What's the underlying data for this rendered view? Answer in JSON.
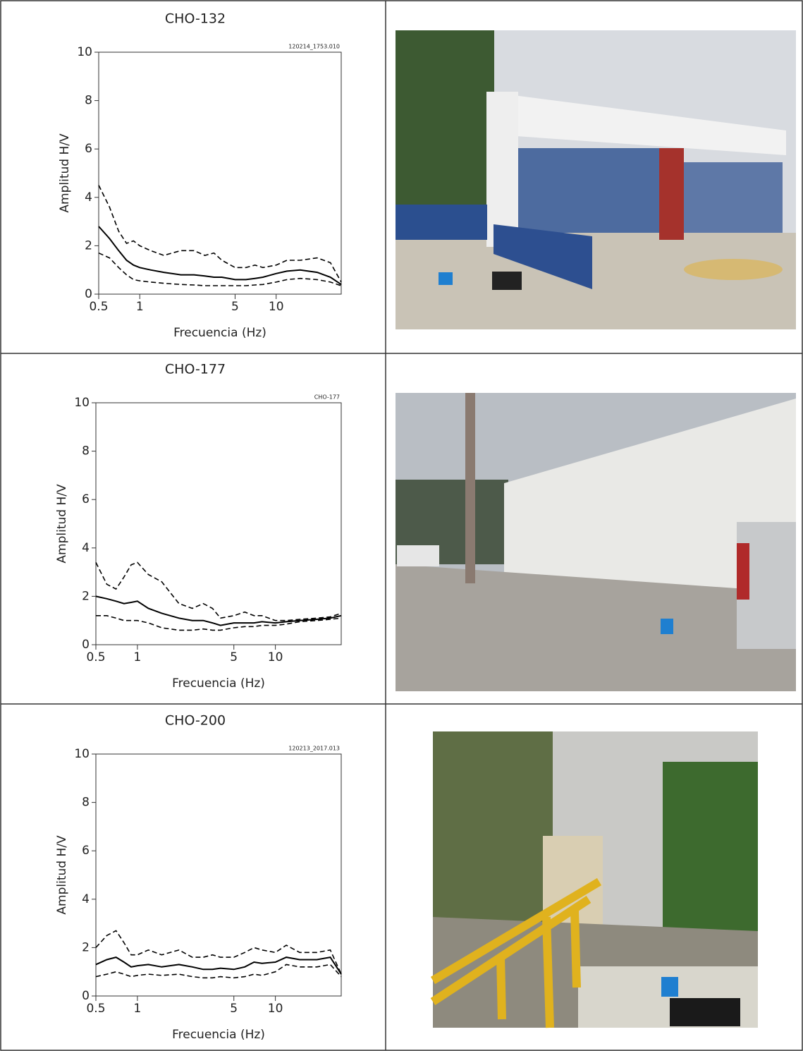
{
  "chart_data": [
    {
      "type": "line",
      "title": "CHO-132",
      "annotation": "120214_1753.010",
      "xlabel": "Frecuencia (Hz)",
      "ylabel": "Amplitud H/V",
      "xscale": "log",
      "x": [
        0.5,
        0.6,
        0.7,
        0.8,
        0.9,
        1,
        1.2,
        1.5,
        2,
        2.5,
        3,
        3.5,
        4,
        5,
        6,
        7,
        8,
        10,
        12,
        15,
        20,
        25,
        30
      ],
      "xlim": [
        0.5,
        30
      ],
      "xticks": [
        0.5,
        1,
        5,
        10
      ],
      "ylim": [
        0,
        10
      ],
      "yticks": [
        0,
        2,
        4,
        6,
        8,
        10
      ],
      "series": [
        {
          "color": "#000000",
          "style": "solid",
          "values": [
            2.8,
            2.3,
            1.8,
            1.4,
            1.2,
            1.1,
            1.0,
            0.9,
            0.8,
            0.8,
            0.75,
            0.7,
            0.7,
            0.6,
            0.6,
            0.65,
            0.7,
            0.85,
            0.95,
            1.0,
            0.9,
            0.7,
            0.4
          ]
        },
        {
          "color": "#000000",
          "style": "dashed",
          "values": [
            4.5,
            3.6,
            2.6,
            2.1,
            2.2,
            2.0,
            1.8,
            1.6,
            1.8,
            1.8,
            1.6,
            1.7,
            1.4,
            1.1,
            1.1,
            1.2,
            1.1,
            1.2,
            1.4,
            1.4,
            1.5,
            1.3,
            0.5
          ]
        },
        {
          "color": "#000000",
          "style": "dashed",
          "values": [
            1.7,
            1.5,
            1.1,
            0.8,
            0.6,
            0.55,
            0.5,
            0.45,
            0.4,
            0.38,
            0.35,
            0.35,
            0.35,
            0.35,
            0.35,
            0.38,
            0.4,
            0.5,
            0.6,
            0.65,
            0.6,
            0.5,
            0.35
          ]
        }
      ]
    },
    {
      "type": "line",
      "title": "CHO-177",
      "annotation": "CHO-177",
      "xlabel": "Frecuencia (Hz)",
      "ylabel": "Amplitud H/V",
      "xscale": "log",
      "x": [
        0.5,
        0.6,
        0.7,
        0.8,
        0.9,
        1,
        1.2,
        1.5,
        2,
        2.5,
        3,
        3.5,
        4,
        5,
        6,
        7,
        8,
        10,
        12,
        15,
        20,
        25,
        30
      ],
      "xlim": [
        0.5,
        30
      ],
      "xticks": [
        0.5,
        1,
        5,
        10
      ],
      "ylim": [
        0,
        10
      ],
      "yticks": [
        0,
        2,
        4,
        6,
        8,
        10
      ],
      "series": [
        {
          "color": "#000000",
          "style": "solid",
          "values": [
            2.0,
            1.9,
            1.8,
            1.7,
            1.75,
            1.8,
            1.5,
            1.3,
            1.1,
            1.0,
            1.0,
            0.9,
            0.8,
            0.9,
            0.9,
            0.9,
            0.95,
            0.9,
            0.95,
            1.0,
            1.05,
            1.1,
            1.2
          ]
        },
        {
          "color": "#000000",
          "style": "dashed",
          "values": [
            3.4,
            2.5,
            2.3,
            2.8,
            3.3,
            3.4,
            2.9,
            2.6,
            1.7,
            1.5,
            1.7,
            1.5,
            1.1,
            1.2,
            1.35,
            1.2,
            1.2,
            1.0,
            1.0,
            1.05,
            1.1,
            1.15,
            1.3
          ]
        },
        {
          "color": "#000000",
          "style": "dashed",
          "values": [
            1.2,
            1.2,
            1.1,
            1.0,
            1.0,
            1.0,
            0.9,
            0.7,
            0.6,
            0.6,
            0.65,
            0.6,
            0.6,
            0.7,
            0.75,
            0.75,
            0.8,
            0.8,
            0.85,
            0.95,
            1.0,
            1.05,
            1.1
          ]
        }
      ]
    },
    {
      "type": "line",
      "title": "CHO-200",
      "annotation": "120213_2017.013",
      "xlabel": "Frecuencia (Hz)",
      "ylabel": "Amplitud H/V",
      "xscale": "log",
      "x": [
        0.5,
        0.6,
        0.7,
        0.8,
        0.9,
        1,
        1.2,
        1.5,
        2,
        2.5,
        3,
        3.5,
        4,
        5,
        6,
        7,
        8,
        10,
        12,
        15,
        20,
        25,
        30
      ],
      "xlim": [
        0.5,
        30
      ],
      "xticks": [
        0.5,
        1,
        5,
        10
      ],
      "ylim": [
        0,
        10
      ],
      "yticks": [
        0,
        2,
        4,
        6,
        8,
        10
      ],
      "series": [
        {
          "color": "#000000",
          "style": "solid",
          "values": [
            1.3,
            1.5,
            1.6,
            1.4,
            1.2,
            1.25,
            1.3,
            1.2,
            1.3,
            1.2,
            1.1,
            1.1,
            1.15,
            1.1,
            1.2,
            1.4,
            1.35,
            1.4,
            1.6,
            1.5,
            1.5,
            1.6,
            0.9
          ]
        },
        {
          "color": "#000000",
          "style": "dashed",
          "values": [
            2.0,
            2.5,
            2.7,
            2.2,
            1.7,
            1.7,
            1.9,
            1.7,
            1.9,
            1.6,
            1.6,
            1.7,
            1.6,
            1.6,
            1.8,
            2.0,
            1.9,
            1.8,
            2.1,
            1.8,
            1.8,
            1.9,
            0.9
          ]
        },
        {
          "color": "#000000",
          "style": "dashed",
          "values": [
            0.8,
            0.9,
            1.0,
            0.9,
            0.8,
            0.85,
            0.9,
            0.85,
            0.9,
            0.8,
            0.75,
            0.75,
            0.8,
            0.75,
            0.8,
            0.9,
            0.85,
            1.0,
            1.3,
            1.2,
            1.2,
            1.3,
            0.8
          ]
        }
      ]
    }
  ]
}
